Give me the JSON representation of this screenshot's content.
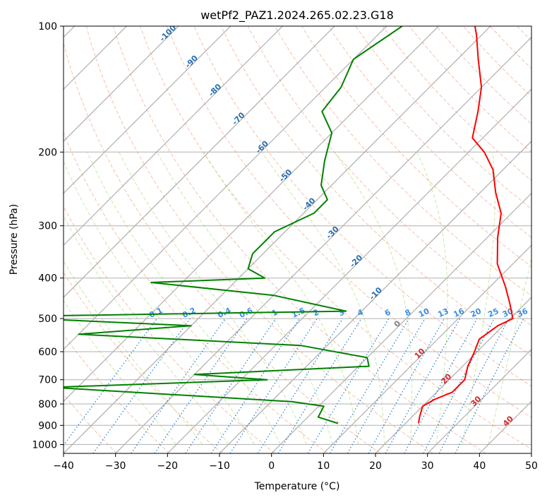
{
  "chart_data": {
    "type": "line",
    "title": "wetPf2_PAZ1.2024.265.02.23.G18",
    "xlabel": "Temperature (°C)",
    "ylabel": "Pressure (hPa)",
    "xlim": [
      -40,
      50
    ],
    "ylim": [
      1050,
      100
    ],
    "y_scale": "log",
    "x_ticks": [
      "−40",
      "−30",
      "−20",
      "−10",
      "0",
      "10",
      "20",
      "30",
      "40",
      "50"
    ],
    "x_tick_values": [
      -40,
      -30,
      -20,
      -10,
      0,
      10,
      20,
      30,
      40,
      50
    ],
    "y_ticks": [
      "100",
      "200",
      "300",
      "400",
      "500",
      "600",
      "700",
      "800",
      "900",
      "1000"
    ],
    "y_tick_values": [
      100,
      200,
      300,
      400,
      500,
      600,
      700,
      800,
      900,
      1000
    ],
    "grid": true,
    "skew_t": true,
    "series": [
      {
        "color": "#ff0000",
        "points": [
          [
            22.5,
            890
          ],
          [
            21.5,
            860
          ],
          [
            20.0,
            810
          ],
          [
            21.0,
            780
          ],
          [
            23.0,
            750
          ],
          [
            23.0,
            700
          ],
          [
            21.0,
            650
          ],
          [
            19.5,
            600
          ],
          [
            18.0,
            560
          ],
          [
            19.0,
            520
          ],
          [
            20.5,
            500
          ],
          [
            17.0,
            460
          ],
          [
            13.0,
            420
          ],
          [
            7.0,
            370
          ],
          [
            2.0,
            320
          ],
          [
            -2.0,
            280
          ],
          [
            -7.0,
            250
          ],
          [
            -12.0,
            220
          ],
          [
            -17.0,
            200
          ],
          [
            -22.0,
            185
          ],
          [
            -26.0,
            160
          ],
          [
            -30.0,
            140
          ],
          [
            -36.0,
            120
          ],
          [
            -41.0,
            105
          ],
          [
            -43.0,
            100
          ]
        ]
      },
      {
        "color": "#008000",
        "points": [
          [
            7.0,
            890
          ],
          [
            2.0,
            860
          ],
          [
            1.0,
            810
          ],
          [
            -6.0,
            790
          ],
          [
            -55.0,
            730
          ],
          [
            -15.0,
            700
          ],
          [
            -30.0,
            680
          ],
          [
            2.0,
            650
          ],
          [
            0.0,
            620
          ],
          [
            -15.0,
            580
          ],
          [
            -60.0,
            545
          ],
          [
            -40.0,
            520
          ],
          [
            -80.0,
            495
          ],
          [
            -13.0,
            480
          ],
          [
            -30.0,
            440
          ],
          [
            -56.0,
            410
          ],
          [
            -35.0,
            400
          ],
          [
            -40.0,
            380
          ],
          [
            -42.0,
            350
          ],
          [
            -42.0,
            310
          ],
          [
            -38.0,
            280
          ],
          [
            -38.0,
            260
          ],
          [
            -42.0,
            240
          ],
          [
            -46.0,
            210
          ],
          [
            -50.0,
            180
          ],
          [
            -56.0,
            160
          ],
          [
            -57.0,
            140
          ],
          [
            -60.0,
            120
          ],
          [
            -57.0,
            100
          ]
        ]
      }
    ],
    "isotherm_labels": [
      "-100",
      "-90",
      "-80",
      "-70",
      "-60",
      "-50",
      "-40",
      "-30",
      "-20",
      "-10",
      "0",
      "10",
      "20",
      "30",
      "40"
    ],
    "mixing_ratio_labels": [
      "0.1",
      "0.2",
      "0.4",
      "0.6",
      "1",
      "1.5",
      "2",
      "3",
      "4",
      "6",
      "8",
      "10",
      "13",
      "16",
      "20",
      "25",
      "30",
      "36"
    ]
  },
  "colors": {
    "temperature_line": "#ff0000",
    "dewpoint_line": "#008000",
    "isotherm": "#a0a0a0",
    "dry_adiabat": "#f4a582",
    "moist_adiabat": "#a6d96a",
    "mixing_ratio": "#1f78d4",
    "isotherm_label_cold": "#2a6fb0",
    "isotherm_label_zero": "#808080",
    "isotherm_label_warm": "#d62728"
  }
}
